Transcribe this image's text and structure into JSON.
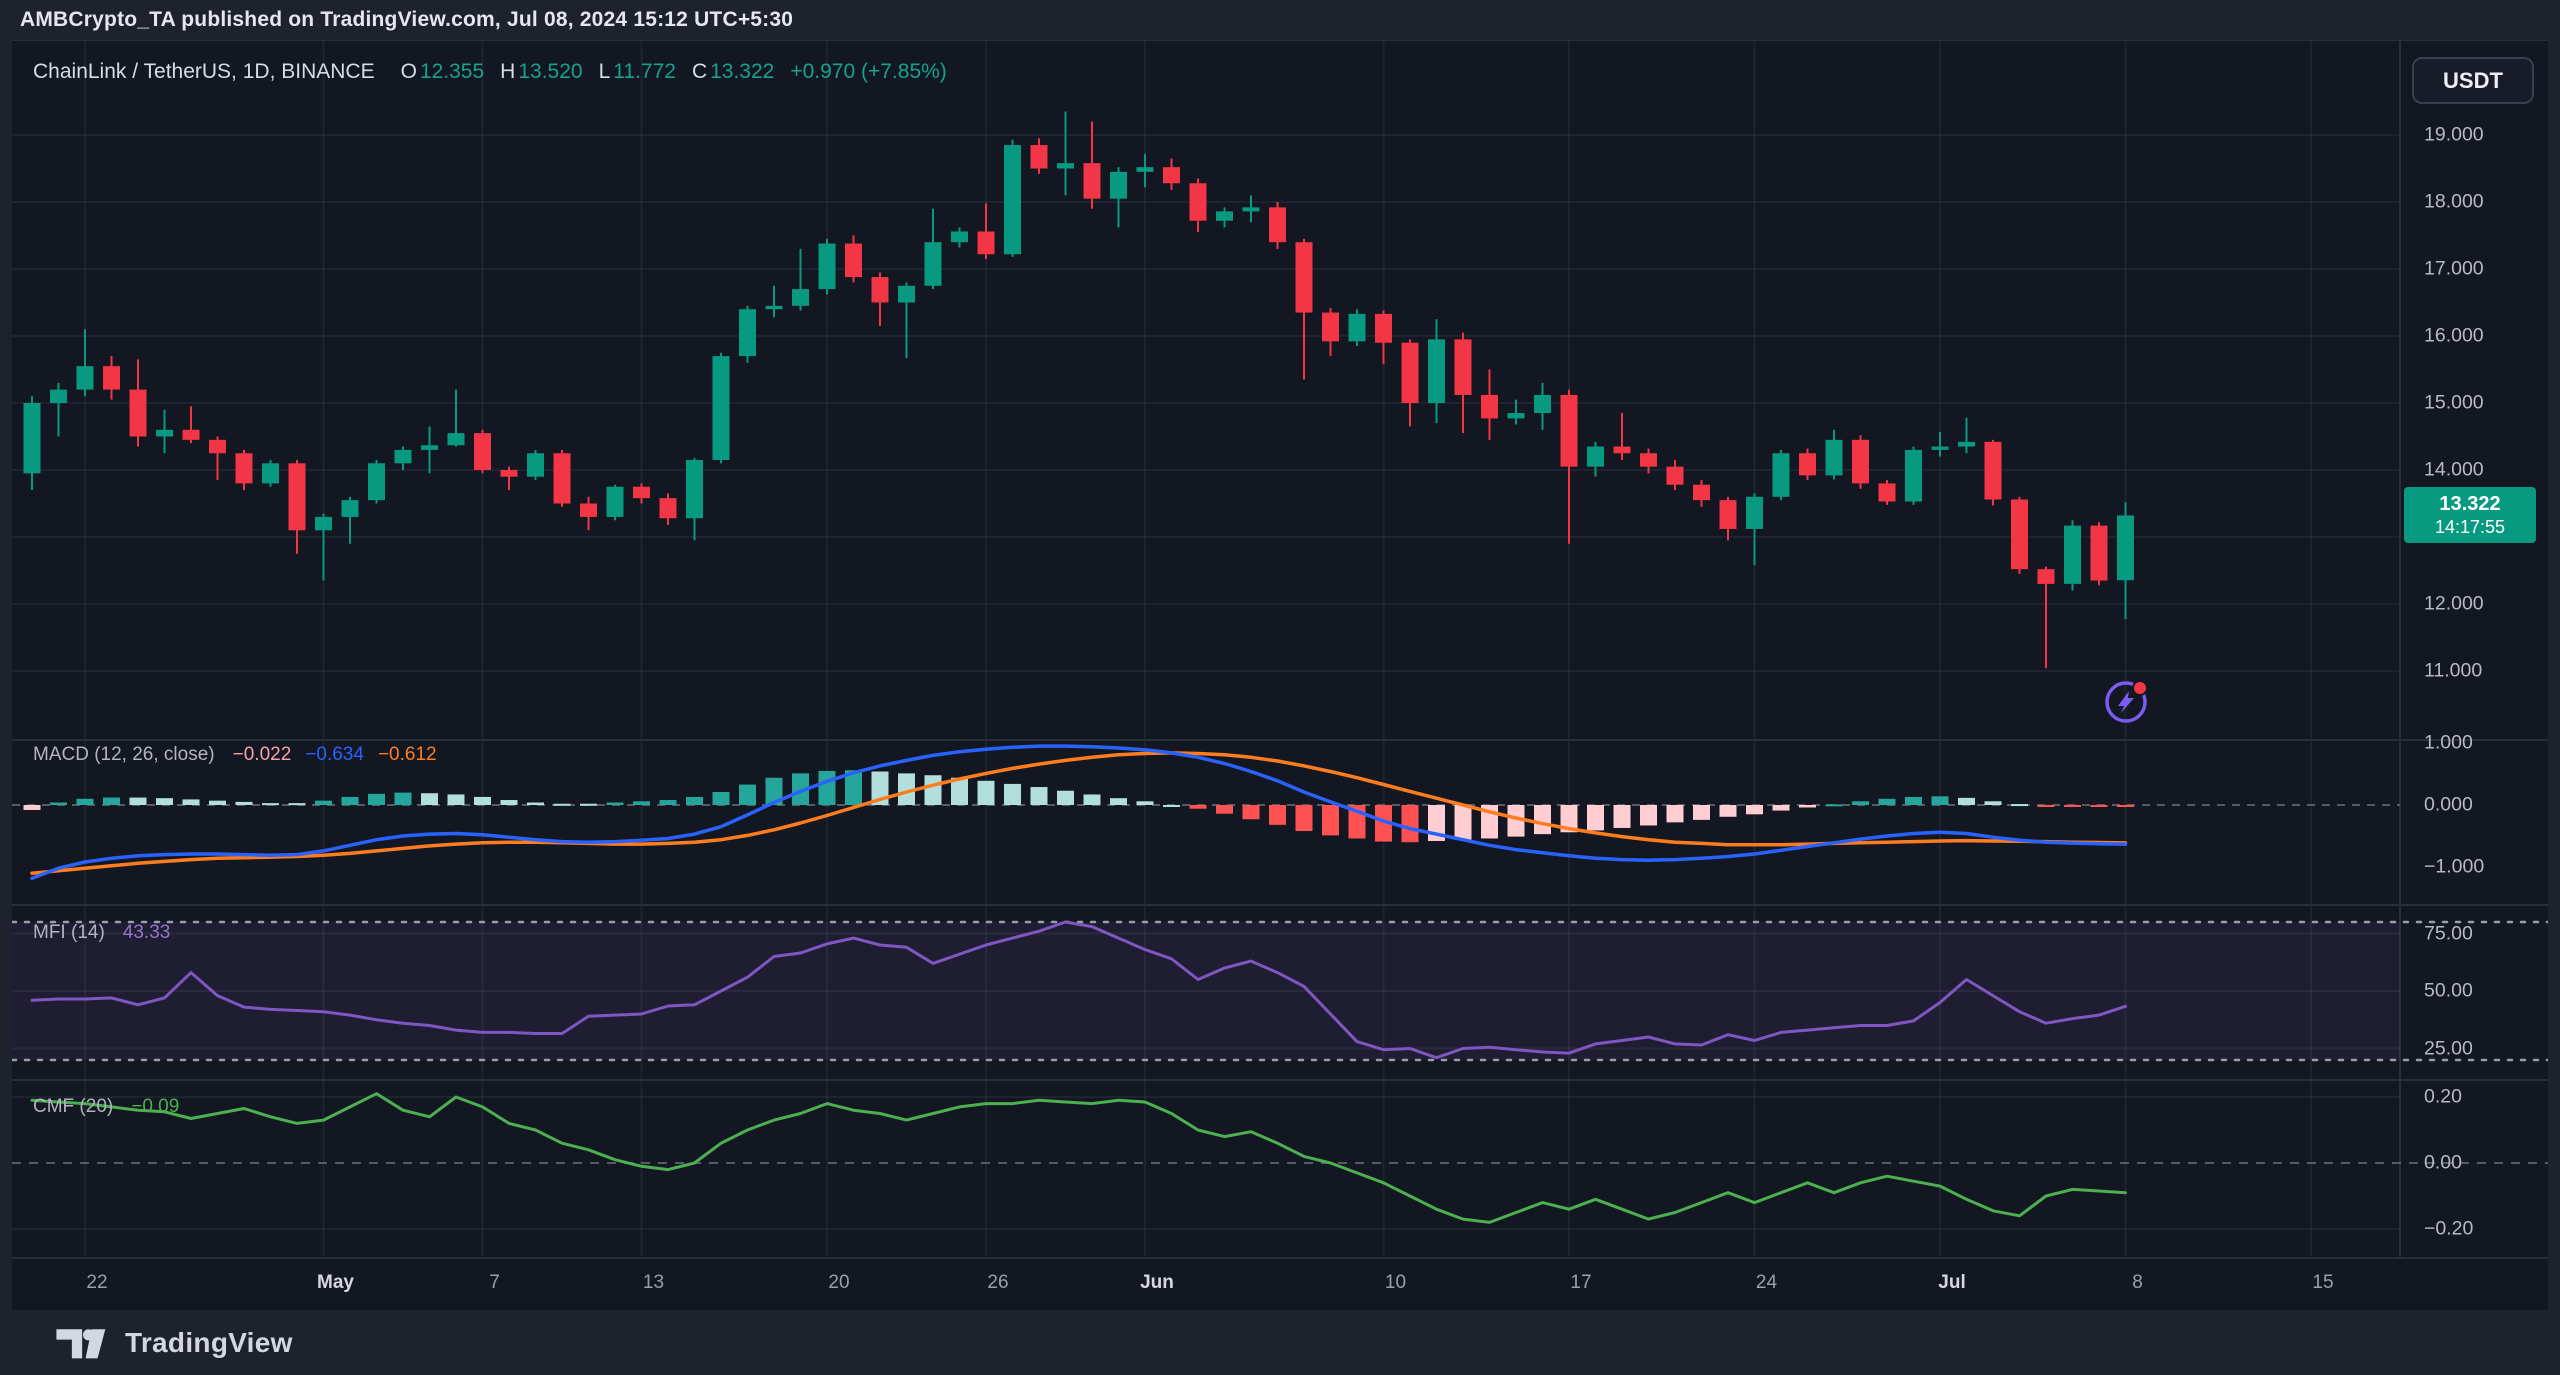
{
  "header": {
    "caption": "AMBCrypto_TA published on TradingView.com, Jul 08, 2024 15:12 UTC+5:30"
  },
  "toolbar": {
    "currency_button": "USDT"
  },
  "legend": {
    "symbol": "ChainLink / TetherUS, 1D, BINANCE",
    "o_label": "O",
    "o": "12.355",
    "h_label": "H",
    "h": "13.520",
    "l_label": "L",
    "l": "11.772",
    "c_label": "C",
    "c": "13.322",
    "change": "+0.970 (+7.85%)"
  },
  "price_tag": {
    "price": "13.322",
    "countdown": "14:17:55"
  },
  "footer": {
    "brand": "TradingView"
  },
  "panes": {
    "macd": {
      "title": "MACD (12, 26, close)",
      "hist_value": "−0.022",
      "macd_value": "−0.634",
      "signal_value": "−0.612",
      "axis": [
        {
          "label": "1.000",
          "value": 1
        },
        {
          "label": "0.000",
          "value": 0
        },
        {
          "label": "−1.000",
          "value": -1
        }
      ]
    },
    "mfi": {
      "title": "MFI (14)",
      "value": "43.33",
      "axis": [
        {
          "label": "75.00",
          "value": 75
        },
        {
          "label": "50.00",
          "value": 50
        },
        {
          "label": "25.00",
          "value": 25
        }
      ]
    },
    "cmf": {
      "title": "CMF (20)",
      "value": "−0.09",
      "axis": [
        {
          "label": "0.20",
          "value": 0.2
        },
        {
          "label": "0.00",
          "value": 0
        },
        {
          "label": "−0.20",
          "value": -0.2
        }
      ]
    }
  },
  "price_axis": [
    {
      "label": "19.000",
      "value": 19
    },
    {
      "label": "18.000",
      "value": 18
    },
    {
      "label": "17.000",
      "value": 17
    },
    {
      "label": "16.000",
      "value": 16
    },
    {
      "label": "15.000",
      "value": 15
    },
    {
      "label": "14.000",
      "value": 14
    },
    {
      "label": "12.000",
      "value": 12
    },
    {
      "label": "11.000",
      "value": 11
    }
  ],
  "colors": {
    "up": "#089981",
    "down": "#f23645",
    "hist_up_strong": "#26a69a",
    "hist_up_weak": "#b2dfdb",
    "hist_down_strong": "#ff5252",
    "hist_down_weak": "#ffcdd2",
    "macd_line": "#2962ff",
    "signal_line": "#ff7d1f",
    "mfi_line": "#7e57c2",
    "mfi_value_text": "#9575cd",
    "mfi_band_fill": "rgba(126,87,194,0.10)",
    "cmf_line": "#4caf50",
    "grid": "rgba(240,243,250,0.06)",
    "separator": "#2a2e39",
    "dashed_level": "#565b68",
    "dotted_band": "#9a9daa",
    "tag_bg": "#089981",
    "tag_text": "#ffffff",
    "hist_value_text": "#f7a1aa",
    "macd_value_text": "#2962ff",
    "signal_value_text": "#ff7d1f",
    "marker_purple": "#7a5cf0",
    "marker_dot": "#f23645"
  },
  "chart_data": {
    "type": "candlestick_with_indicators",
    "symbol": "LINKUSDT",
    "interval": "1D",
    "exchange": "BINANCE",
    "start_date": "2024-04-20",
    "end_date": "2024-07-08",
    "price_ylim": [
      10.0,
      20.4
    ],
    "x_ticks": [
      {
        "label": "22",
        "d": 2,
        "bold": false
      },
      {
        "label": "May",
        "d": 11,
        "bold": true
      },
      {
        "label": "7",
        "d": 17,
        "bold": false
      },
      {
        "label": "13",
        "d": 23,
        "bold": false
      },
      {
        "label": "20",
        "d": 30,
        "bold": false
      },
      {
        "label": "26",
        "d": 36,
        "bold": false
      },
      {
        "label": "Jun",
        "d": 42,
        "bold": true
      },
      {
        "label": "10",
        "d": 51,
        "bold": false
      },
      {
        "label": "17",
        "d": 58,
        "bold": false
      },
      {
        "label": "24",
        "d": 65,
        "bold": false
      },
      {
        "label": "Jul",
        "d": 72,
        "bold": true
      },
      {
        "label": "8",
        "d": 79,
        "bold": false
      },
      {
        "label": "15",
        "d": 86,
        "bold": false
      }
    ],
    "candles_ohlc": [
      [
        13.95,
        15.1,
        13.7,
        15.0
      ],
      [
        15.0,
        15.3,
        14.5,
        15.2
      ],
      [
        15.2,
        16.1,
        15.1,
        15.55
      ],
      [
        15.55,
        15.7,
        15.05,
        15.2
      ],
      [
        15.2,
        15.65,
        14.35,
        14.5
      ],
      [
        14.5,
        14.9,
        14.25,
        14.6
      ],
      [
        14.6,
        14.95,
        14.4,
        14.45
      ],
      [
        14.45,
        14.5,
        13.85,
        14.25
      ],
      [
        14.25,
        14.3,
        13.7,
        13.8
      ],
      [
        13.8,
        14.15,
        13.75,
        14.1
      ],
      [
        14.1,
        14.15,
        12.75,
        13.1
      ],
      [
        13.1,
        13.35,
        12.35,
        13.3
      ],
      [
        13.3,
        13.6,
        12.9,
        13.55
      ],
      [
        13.55,
        14.15,
        13.5,
        14.1
      ],
      [
        14.1,
        14.35,
        14.0,
        14.3
      ],
      [
        14.3,
        14.65,
        13.95,
        14.37
      ],
      [
        14.37,
        15.2,
        14.35,
        14.55
      ],
      [
        14.55,
        14.6,
        13.95,
        14.0
      ],
      [
        14.0,
        14.05,
        13.7,
        13.9
      ],
      [
        13.9,
        14.3,
        13.85,
        14.25
      ],
      [
        14.25,
        14.3,
        13.45,
        13.5
      ],
      [
        13.5,
        13.6,
        13.1,
        13.3
      ],
      [
        13.3,
        13.78,
        13.25,
        13.75
      ],
      [
        13.75,
        13.8,
        13.5,
        13.58
      ],
      [
        13.58,
        13.65,
        13.18,
        13.28
      ],
      [
        13.28,
        14.18,
        12.95,
        14.15
      ],
      [
        14.15,
        15.75,
        14.1,
        15.7
      ],
      [
        15.7,
        16.45,
        15.6,
        16.4
      ],
      [
        16.4,
        16.75,
        16.28,
        16.45
      ],
      [
        16.45,
        17.3,
        16.38,
        16.7
      ],
      [
        16.7,
        17.45,
        16.62,
        17.38
      ],
      [
        17.38,
        17.5,
        16.8,
        16.88
      ],
      [
        16.88,
        16.95,
        16.15,
        16.5
      ],
      [
        16.5,
        16.8,
        15.67,
        16.75
      ],
      [
        16.75,
        17.9,
        16.7,
        17.4
      ],
      [
        17.4,
        17.62,
        17.32,
        17.56
      ],
      [
        17.56,
        17.98,
        17.15,
        17.22
      ],
      [
        17.22,
        18.93,
        17.18,
        18.85
      ],
      [
        18.85,
        18.95,
        18.42,
        18.5
      ],
      [
        18.5,
        19.35,
        18.1,
        18.58
      ],
      [
        18.58,
        19.2,
        17.9,
        18.05
      ],
      [
        18.05,
        18.52,
        17.62,
        18.45
      ],
      [
        18.45,
        18.72,
        18.22,
        18.52
      ],
      [
        18.52,
        18.65,
        18.18,
        18.28
      ],
      [
        18.28,
        18.35,
        17.55,
        17.72
      ],
      [
        17.72,
        17.92,
        17.62,
        17.86
      ],
      [
        17.86,
        18.1,
        17.7,
        17.92
      ],
      [
        17.92,
        18.0,
        17.3,
        17.4
      ],
      [
        17.4,
        17.45,
        15.35,
        16.35
      ],
      [
        16.35,
        16.42,
        15.7,
        15.92
      ],
      [
        15.92,
        16.4,
        15.85,
        16.33
      ],
      [
        16.33,
        16.38,
        15.58,
        15.9
      ],
      [
        15.9,
        15.95,
        14.65,
        15.0
      ],
      [
        15.0,
        16.25,
        14.7,
        15.95
      ],
      [
        15.95,
        16.05,
        14.55,
        15.12
      ],
      [
        15.12,
        15.5,
        14.45,
        14.77
      ],
      [
        14.77,
        15.05,
        14.68,
        14.85
      ],
      [
        14.85,
        15.3,
        14.6,
        15.12
      ],
      [
        15.12,
        15.2,
        12.9,
        14.05
      ],
      [
        14.05,
        14.42,
        13.9,
        14.35
      ],
      [
        14.35,
        14.85,
        14.15,
        14.25
      ],
      [
        14.25,
        14.32,
        13.95,
        14.05
      ],
      [
        14.05,
        14.15,
        13.7,
        13.78
      ],
      [
        13.78,
        13.85,
        13.45,
        13.55
      ],
      [
        13.55,
        13.6,
        12.95,
        13.12
      ],
      [
        13.12,
        13.65,
        12.58,
        13.6
      ],
      [
        13.6,
        14.3,
        13.55,
        14.25
      ],
      [
        14.25,
        14.32,
        13.85,
        13.92
      ],
      [
        13.92,
        14.6,
        13.86,
        14.45
      ],
      [
        14.45,
        14.52,
        13.72,
        13.8
      ],
      [
        13.8,
        13.85,
        13.48,
        13.53
      ],
      [
        13.53,
        14.35,
        13.48,
        14.3
      ],
      [
        14.3,
        14.57,
        14.2,
        14.35
      ],
      [
        14.35,
        14.78,
        14.25,
        14.42
      ],
      [
        14.42,
        14.45,
        13.47,
        13.56
      ],
      [
        13.56,
        13.6,
        12.45,
        12.52
      ],
      [
        12.52,
        12.56,
        11.04,
        12.3
      ],
      [
        12.3,
        13.25,
        12.2,
        13.17
      ],
      [
        13.17,
        13.22,
        12.28,
        12.35
      ],
      [
        12.355,
        13.52,
        11.772,
        13.322
      ]
    ],
    "macd": {
      "params": [
        12,
        26,
        "close"
      ],
      "ylim": [
        -1.35,
        1.1
      ],
      "macd_line": [
        -1.18,
        -1.02,
        -0.92,
        -0.86,
        -0.82,
        -0.8,
        -0.79,
        -0.79,
        -0.8,
        -0.81,
        -0.8,
        -0.74,
        -0.65,
        -0.56,
        -0.5,
        -0.47,
        -0.46,
        -0.48,
        -0.52,
        -0.56,
        -0.59,
        -0.6,
        -0.59,
        -0.57,
        -0.54,
        -0.47,
        -0.35,
        -0.16,
        0.04,
        0.22,
        0.38,
        0.52,
        0.63,
        0.72,
        0.8,
        0.86,
        0.9,
        0.93,
        0.95,
        0.95,
        0.94,
        0.92,
        0.89,
        0.84,
        0.77,
        0.67,
        0.54,
        0.39,
        0.21,
        0.05,
        -0.1,
        -0.26,
        -0.38,
        -0.47,
        -0.56,
        -0.65,
        -0.72,
        -0.77,
        -0.82,
        -0.86,
        -0.88,
        -0.89,
        -0.88,
        -0.86,
        -0.83,
        -0.79,
        -0.73,
        -0.67,
        -0.61,
        -0.55,
        -0.5,
        -0.46,
        -0.44,
        -0.46,
        -0.52,
        -0.57,
        -0.6,
        -0.615,
        -0.625,
        -0.634
      ],
      "signal_line": [
        -1.1,
        -1.06,
        -1.02,
        -0.98,
        -0.94,
        -0.91,
        -0.88,
        -0.86,
        -0.85,
        -0.84,
        -0.83,
        -0.81,
        -0.78,
        -0.74,
        -0.7,
        -0.66,
        -0.63,
        -0.61,
        -0.6,
        -0.6,
        -0.61,
        -0.62,
        -0.63,
        -0.63,
        -0.62,
        -0.6,
        -0.56,
        -0.49,
        -0.4,
        -0.29,
        -0.17,
        -0.04,
        0.09,
        0.21,
        0.32,
        0.42,
        0.51,
        0.59,
        0.66,
        0.72,
        0.77,
        0.81,
        0.83,
        0.84,
        0.83,
        0.81,
        0.77,
        0.71,
        0.63,
        0.54,
        0.44,
        0.33,
        0.22,
        0.11,
        0.0,
        -0.11,
        -0.21,
        -0.3,
        -0.38,
        -0.45,
        -0.51,
        -0.56,
        -0.6,
        -0.62,
        -0.64,
        -0.64,
        -0.64,
        -0.63,
        -0.62,
        -0.61,
        -0.6,
        -0.59,
        -0.58,
        -0.575,
        -0.58,
        -0.585,
        -0.59,
        -0.6,
        -0.605,
        -0.612
      ],
      "last_values": {
        "hist": -0.022,
        "macd": -0.634,
        "signal": -0.612
      }
    },
    "mfi": {
      "period": 14,
      "ylim": [
        10,
        90
      ],
      "bands": [
        80,
        20
      ],
      "levels": [
        75,
        50,
        25
      ],
      "values": [
        46,
        46.5,
        46.5,
        47,
        44,
        47,
        58,
        48,
        43,
        42,
        41.5,
        41,
        39.5,
        37.5,
        36,
        35,
        33,
        32,
        32,
        31.5,
        31.5,
        39,
        39.5,
        40,
        43.5,
        44,
        50,
        56,
        65,
        66.5,
        70.5,
        73,
        70,
        69,
        62,
        66,
        70,
        73,
        76,
        80,
        78,
        73,
        68,
        64,
        55,
        60,
        63,
        58,
        52,
        40,
        28,
        24.5,
        25,
        21,
        25,
        25.5,
        24.5,
        23.5,
        23,
        27,
        28.5,
        30,
        27,
        26.5,
        31,
        28.5,
        32,
        33,
        34,
        35,
        35,
        37,
        45,
        55,
        48,
        41,
        36,
        38,
        39.5,
        43.33
      ],
      "last_value": 43.33
    },
    "cmf": {
      "period": 20,
      "ylim": [
        -0.27,
        0.25
      ],
      "values": [
        0.19,
        0.185,
        0.18,
        0.17,
        0.16,
        0.155,
        0.135,
        0.15,
        0.165,
        0.14,
        0.12,
        0.13,
        0.17,
        0.21,
        0.16,
        0.14,
        0.2,
        0.17,
        0.12,
        0.1,
        0.06,
        0.04,
        0.01,
        -0.01,
        -0.02,
        0.0,
        0.06,
        0.1,
        0.13,
        0.15,
        0.18,
        0.16,
        0.15,
        0.13,
        0.15,
        0.17,
        0.18,
        0.18,
        0.19,
        0.185,
        0.18,
        0.19,
        0.185,
        0.15,
        0.1,
        0.08,
        0.095,
        0.06,
        0.02,
        0.0,
        -0.03,
        -0.06,
        -0.1,
        -0.14,
        -0.17,
        -0.18,
        -0.15,
        -0.12,
        -0.14,
        -0.11,
        -0.14,
        -0.17,
        -0.15,
        -0.12,
        -0.09,
        -0.12,
        -0.09,
        -0.06,
        -0.09,
        -0.06,
        -0.04,
        -0.055,
        -0.07,
        -0.11,
        -0.145,
        -0.16,
        -0.1,
        -0.08,
        -0.085,
        -0.09
      ],
      "last_value": -0.09
    }
  }
}
